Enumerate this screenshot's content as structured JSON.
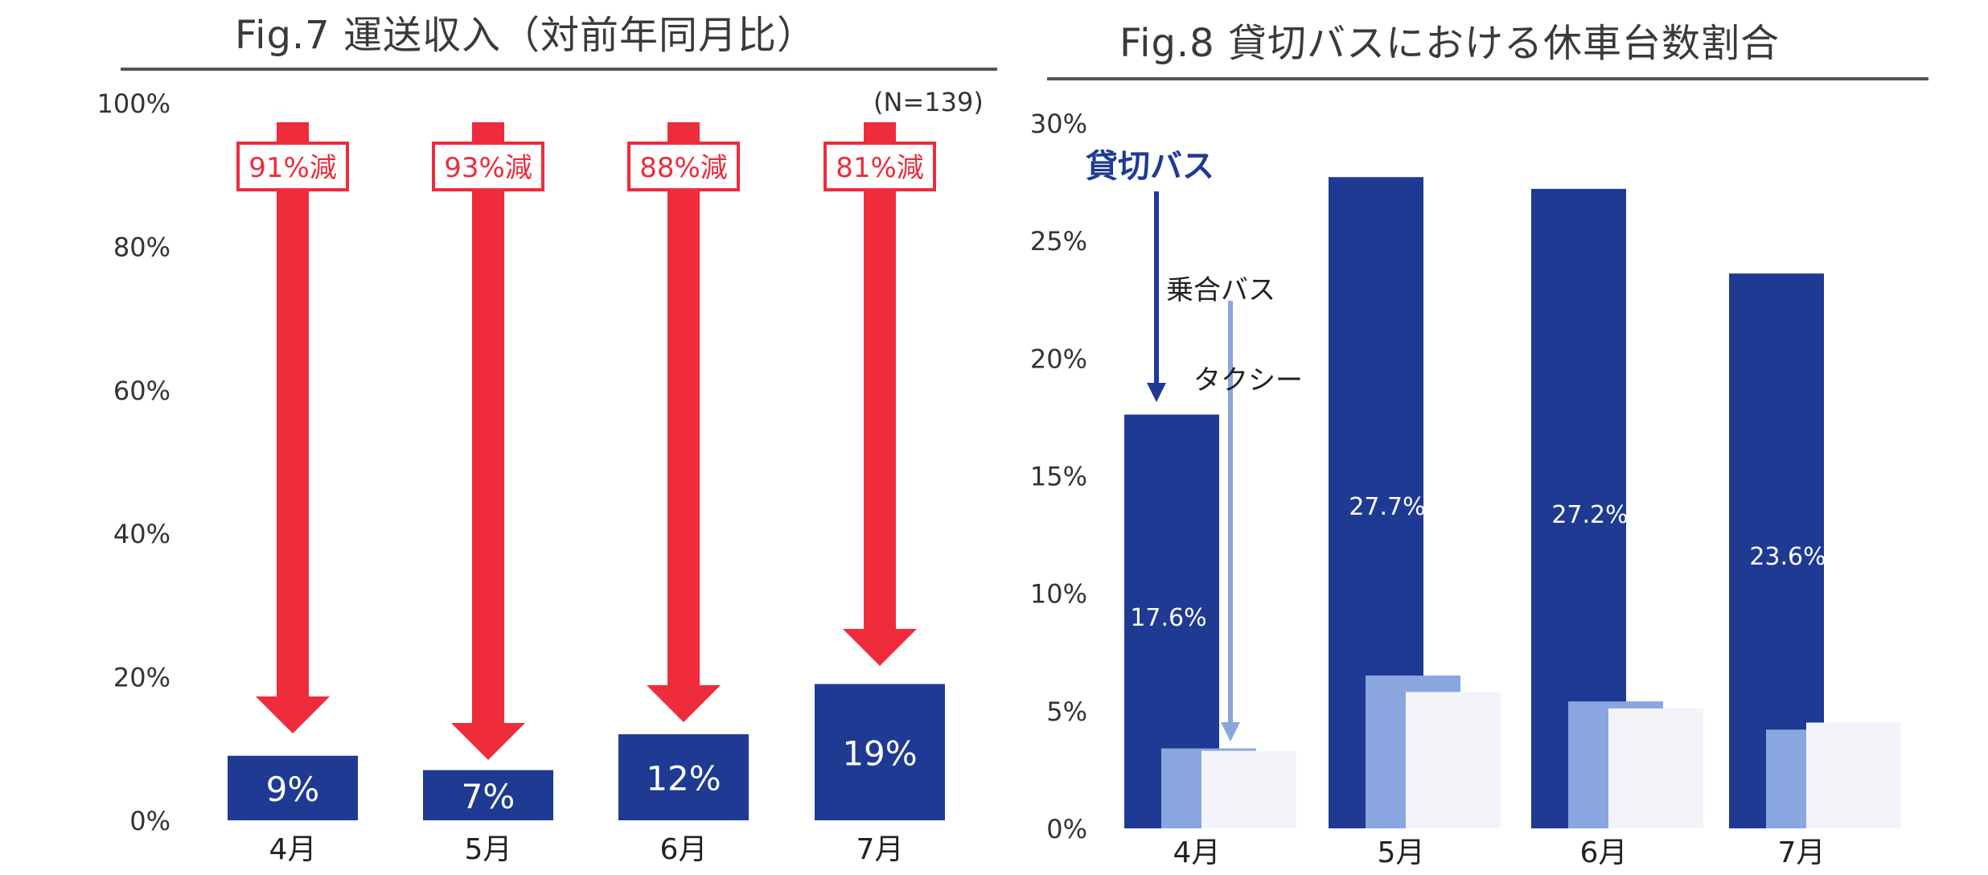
{
  "chart_data": [
    {
      "type": "bar",
      "title": "Fig.7 運送収入（対前年同月比）",
      "note": "(N=139)",
      "categories": [
        "4月",
        "5月",
        "6月",
        "7月"
      ],
      "values": [
        9,
        7,
        12,
        19
      ],
      "value_labels": [
        "9%",
        "7%",
        "12%",
        "19%"
      ],
      "decrease_labels": [
        "91%減",
        "93%減",
        "88%減",
        "81%減"
      ],
      "yticks": [
        "0%",
        "20%",
        "40%",
        "60%",
        "80%",
        "100%"
      ],
      "ylim": [
        0,
        100
      ],
      "colors": {
        "bar": "#1f3a93",
        "arrow": "#ee2c3c"
      }
    },
    {
      "type": "bar",
      "title": "Fig.8 貸切バスにおける休車台数割合",
      "categories": [
        "4月",
        "5月",
        "6月",
        "7月"
      ],
      "series": [
        {
          "name": "貸切バス",
          "values": [
            17.6,
            27.7,
            27.2,
            23.6
          ],
          "labels": [
            "17.6%",
            "27.7%",
            "27.2%",
            "23.6%"
          ]
        },
        {
          "name": "乗合バス",
          "values": [
            3.4,
            6.5,
            5.4,
            4.2
          ]
        },
        {
          "name": "タクシー",
          "values": [
            3.3,
            5.8,
            5.1,
            4.5
          ]
        }
      ],
      "yticks": [
        "0%",
        "5%",
        "10%",
        "15%",
        "20%",
        "25%",
        "30%"
      ],
      "ylim": [
        0,
        30
      ],
      "colors": {
        "charter": "#1f3a93",
        "route": "#8aa6df",
        "taxi": "#f2f4fa"
      }
    }
  ]
}
